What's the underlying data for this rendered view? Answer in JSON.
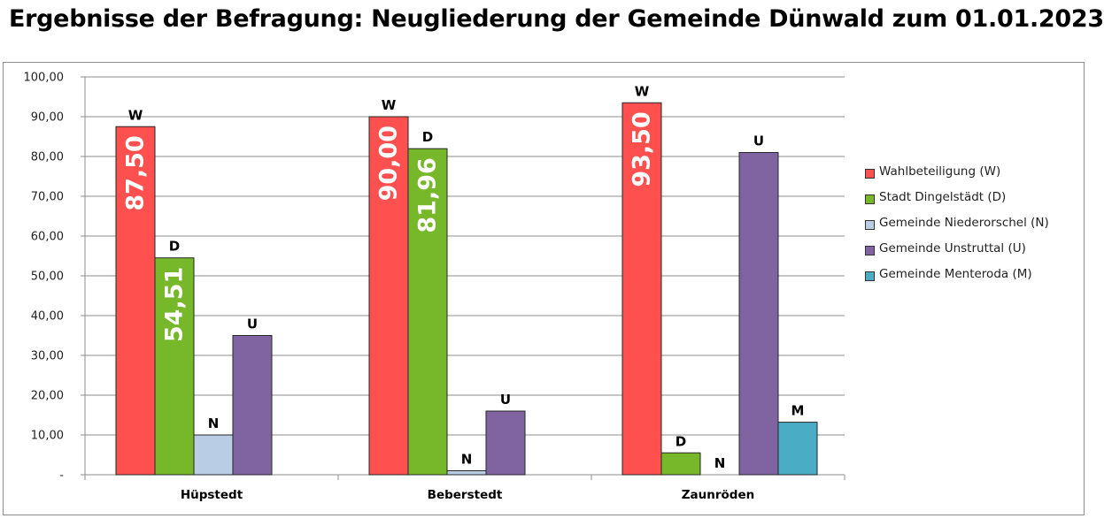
{
  "title": "Ergebnisse der Befragung: Neugliederung der Gemeinde Dünwald zum 01.01.2023",
  "chart_data": {
    "type": "bar",
    "categories": [
      "Hüpstedt",
      "Beberstedt",
      "Zaunröden"
    ],
    "ylim": [
      0,
      100
    ],
    "yticks": [
      "-",
      "10,00",
      "20,00",
      "30,00",
      "40,00",
      "50,00",
      "60,00",
      "70,00",
      "80,00",
      "90,00",
      "100,00"
    ],
    "grid": true,
    "legend_position": "right",
    "series": [
      {
        "name": "Wahlbeteiligung (W)",
        "letter": "W",
        "color": "#ff5050",
        "values": [
          87.5,
          90.0,
          93.5
        ],
        "value_labels": [
          "87,50",
          "90,00",
          "93,50"
        ]
      },
      {
        "name": "Stadt Dingelstädt (D)",
        "letter": "D",
        "color": "#77b82b",
        "values": [
          54.51,
          81.96,
          5.5
        ],
        "value_labels": [
          "54,51",
          "81,96",
          ""
        ]
      },
      {
        "name": "Gemeinde Niederorschel (N)",
        "letter": "N",
        "color": "#b9cde5",
        "values": [
          10.0,
          1.0,
          0
        ],
        "value_labels": [
          "",
          "",
          ""
        ]
      },
      {
        "name": "Gemeinde Unstruttal (U)",
        "letter": "U",
        "color": "#8064a2",
        "values": [
          35.0,
          16.0,
          81.0
        ],
        "value_labels": [
          "",
          "",
          ""
        ]
      },
      {
        "name": "Gemeinde Menteroda (M)",
        "letter": "M",
        "color": "#4bacc6",
        "values": [
          null,
          null,
          13.2
        ],
        "value_labels": [
          "",
          "",
          ""
        ]
      }
    ]
  }
}
